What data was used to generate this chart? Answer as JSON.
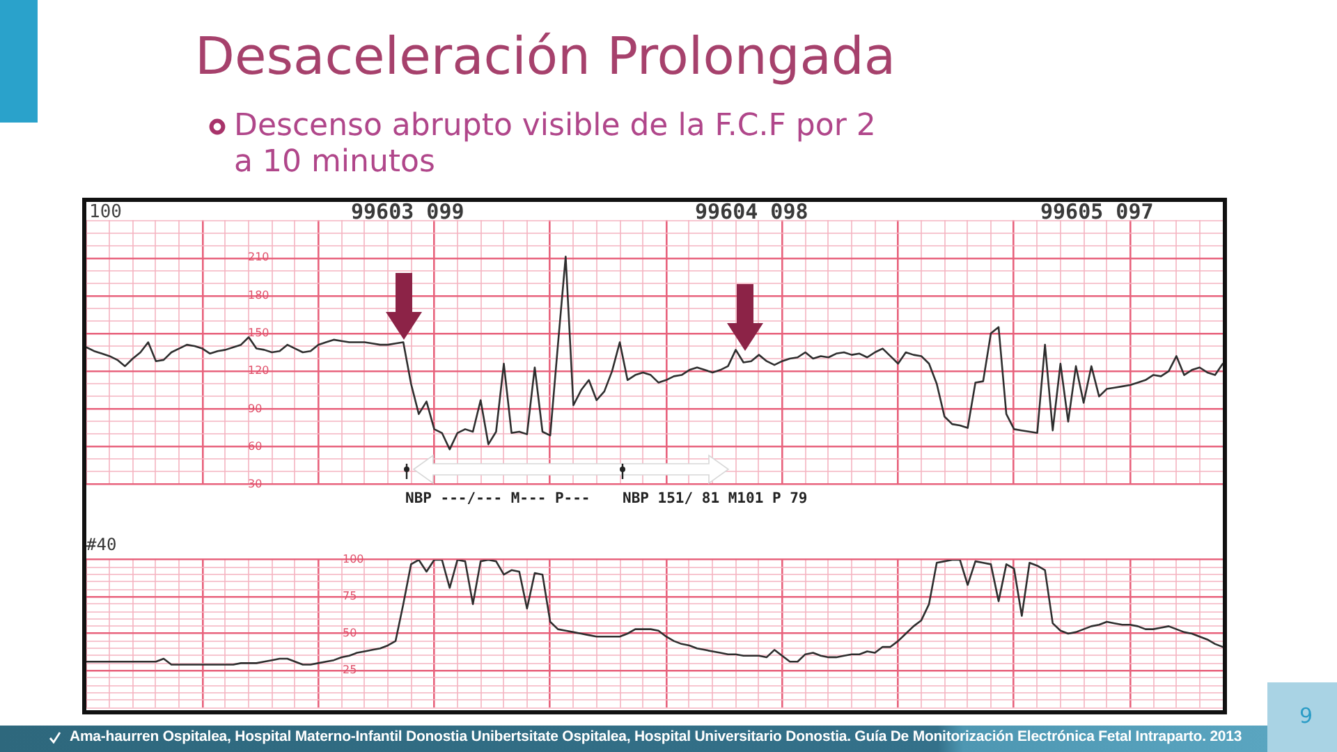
{
  "chart_data": [
    {
      "type": "line",
      "title": "Desaceleración Prolongada",
      "subtitle": "Descenso abrupto visible de la F.C.F por 2 a 10 minutos",
      "annotations": [
        "100",
        "99603 099",
        "99604 098",
        "99605 097",
        "NBP ---/--- M--- P---",
        "NBP 151/ 81 M101 P 79",
        "Ama-haurren Ospitalea, Hospital Materno-Infantil Donostia Unibertsitate Ospitalea, Hospital Universitario Donostia. Guía De Monitorización Electrónica Fetal Intraparto. 2013",
        "9"
      ],
      "categories": [
        null,
        null,
        null,
        null,
        null,
        null,
        null,
        null,
        null,
        null,
        null,
        null,
        null,
        null,
        null,
        null,
        null,
        null,
        null,
        null,
        null,
        null,
        null,
        null,
        null,
        null,
        null,
        null,
        null,
        null,
        null,
        null,
        null,
        null,
        null,
        null,
        null,
        null,
        null,
        null,
        null,
        null,
        null,
        null,
        null,
        null,
        null,
        null,
        null,
        null,
        null,
        null,
        null,
        null,
        null,
        null,
        null,
        null,
        null,
        null,
        null,
        null,
        null,
        null,
        null,
        null,
        null,
        null,
        null,
        null,
        null,
        null,
        null,
        null,
        null,
        null,
        null,
        null,
        null,
        null,
        null,
        null,
        null,
        null,
        null,
        null,
        null,
        null,
        null,
        null,
        null,
        null,
        null,
        null,
        null,
        null,
        null,
        null,
        null,
        null,
        null,
        null,
        null,
        null,
        null,
        null,
        null,
        null,
        null,
        null,
        null,
        null,
        null,
        null,
        null,
        null,
        null,
        null,
        null,
        null,
        null,
        null,
        null,
        null,
        null,
        null,
        null,
        null,
        null,
        null,
        null,
        null,
        null,
        null,
        null,
        null,
        null,
        null,
        null,
        null,
        null,
        null,
        null,
        null,
        null,
        null,
        null,
        null
      ],
      "series": [
        {
          "color": "#2e2e2e",
          "values": [
            139,
            136,
            134,
            132,
            129,
            124,
            130,
            135,
            143,
            128,
            129,
            135,
            138,
            141,
            140,
            138,
            134,
            136,
            137,
            139,
            141,
            147,
            138,
            137,
            135,
            136,
            141,
            138,
            135,
            136,
            141,
            143,
            145,
            144,
            143,
            143,
            143,
            142,
            141,
            141,
            142,
            143,
            110,
            86,
            96,
            74,
            71,
            58,
            71,
            74,
            72,
            97,
            62,
            72,
            126,
            71,
            72,
            70,
            123,
            72,
            69,
            141,
            211,
            93,
            105,
            113,
            97,
            104,
            120,
            143,
            113,
            117,
            119,
            117,
            111,
            113,
            116,
            117,
            121,
            123,
            121,
            119,
            121,
            124,
            137,
            127,
            128,
            133,
            128,
            125,
            128,
            130,
            131,
            135,
            130,
            132,
            131,
            134,
            135,
            133,
            134,
            131,
            135,
            138,
            132,
            126,
            135,
            133,
            132,
            126,
            110,
            84,
            78,
            77,
            75,
            111,
            112,
            150,
            155,
            86,
            74,
            73,
            72,
            71,
            141,
            73,
            126,
            80,
            124,
            95,
            124,
            100,
            106,
            107,
            108,
            109,
            111,
            113,
            117,
            116,
            120,
            132,
            117,
            121,
            123,
            119,
            117,
            126
          ]
        }
      ],
      "ylim": [
        30,
        240
      ],
      "yticks": [
        30,
        {
          "value": 40,
          "label": null
        },
        {
          "value": 50,
          "label": null
        },
        60,
        {
          "value": 70,
          "label": null
        },
        {
          "value": 80,
          "label": null
        },
        90,
        {
          "value": 100,
          "label": null
        },
        {
          "value": 110,
          "label": null
        },
        120,
        {
          "value": 130,
          "label": null
        },
        {
          "value": 140,
          "label": null
        },
        150,
        {
          "value": 160,
          "label": null
        },
        {
          "value": 170,
          "label": null
        },
        180,
        {
          "value": 190,
          "label": null
        },
        {
          "value": 200,
          "label": null
        },
        210,
        {
          "value": 220,
          "label": null
        },
        {
          "value": 230,
          "label": null
        },
        {
          "value": 240,
          "label": null
        }
      ],
      "grid": true,
      "tick_labels": "y"
    },
    {
      "type": "line",
      "annotations": [
        "#40"
      ],
      "categories": [
        null,
        null,
        null,
        null,
        null,
        null,
        null,
        null,
        null,
        null,
        null,
        null,
        null,
        null,
        null,
        null,
        null,
        null,
        null,
        null,
        null,
        null,
        null,
        null,
        null,
        null,
        null,
        null,
        null,
        null,
        null,
        null,
        null,
        null,
        null,
        null,
        null,
        null,
        null,
        null,
        null,
        null,
        null,
        null,
        null,
        null,
        null,
        null,
        null,
        null,
        null,
        null,
        null,
        null,
        null,
        null,
        null,
        null,
        null,
        null,
        null,
        null,
        null,
        null,
        null,
        null,
        null,
        null,
        null,
        null,
        null,
        null,
        null,
        null,
        null,
        null,
        null,
        null,
        null,
        null,
        null,
        null,
        null,
        null,
        null,
        null,
        null,
        null,
        null,
        null,
        null,
        null,
        null,
        null,
        null,
        null,
        null,
        null,
        null,
        null,
        null,
        null,
        null,
        null,
        null,
        null,
        null,
        null,
        null,
        null,
        null,
        null,
        null,
        null,
        null,
        null,
        null,
        null,
        null,
        null,
        null,
        null,
        null,
        null,
        null,
        null,
        null,
        null,
        null,
        null,
        null,
        null,
        null,
        null,
        null,
        null,
        null,
        null,
        null,
        null,
        null,
        null,
        null,
        null,
        null,
        null,
        null,
        null
      ],
      "series": [
        {
          "color": "#2e2e2e",
          "values": [
            31,
            31,
            31,
            31,
            31,
            31,
            31,
            31,
            31,
            31,
            33,
            29,
            29,
            29,
            29,
            29,
            29,
            29,
            29,
            29,
            30,
            30,
            30,
            31,
            32,
            33,
            33,
            31,
            29,
            29,
            30,
            31,
            32,
            34,
            35,
            37,
            38,
            39,
            40,
            42,
            45,
            70,
            97,
            100,
            92,
            100,
            100,
            81,
            100,
            99,
            70,
            99,
            100,
            99,
            90,
            93,
            92,
            67,
            91,
            90,
            58,
            53,
            52,
            51,
            50,
            49,
            48,
            48,
            48,
            48,
            50,
            53,
            53,
            53,
            52,
            48,
            45,
            43,
            42,
            40,
            39,
            38,
            37,
            36,
            36,
            35,
            35,
            35,
            34,
            39,
            35,
            31,
            31,
            36,
            37,
            35,
            34,
            34,
            35,
            36,
            36,
            38,
            37,
            41,
            41,
            45,
            50,
            55,
            59,
            70,
            98,
            99,
            100,
            100,
            83,
            99,
            98,
            97,
            72,
            97,
            94,
            62,
            98,
            96,
            93,
            57,
            52,
            50,
            51,
            53,
            55,
            56,
            58,
            57,
            56,
            56,
            55,
            53,
            53,
            54,
            55,
            53,
            51,
            50,
            48,
            46,
            43,
            41
          ]
        }
      ],
      "ylim": [
        0,
        100
      ],
      "yticks": [
        {
          "value": 0,
          "label": null
        },
        {
          "value": 5,
          "label": null
        },
        {
          "value": 10,
          "label": null
        },
        {
          "value": 15,
          "label": null
        },
        {
          "value": 20,
          "label": null
        },
        25,
        {
          "value": 30,
          "label": null
        },
        {
          "value": 35,
          "label": null
        },
        {
          "value": 40,
          "label": null
        },
        {
          "value": 45,
          "label": null
        },
        50,
        {
          "value": 55,
          "label": null
        },
        {
          "value": 60,
          "label": null
        },
        {
          "value": 65,
          "label": null
        },
        {
          "value": 70,
          "label": null
        },
        75,
        {
          "value": 80,
          "label": null
        },
        {
          "value": 85,
          "label": null
        },
        {
          "value": 90,
          "label": null
        },
        {
          "value": 95,
          "label": null
        },
        100
      ],
      "grid": true,
      "tick_labels": "y"
    }
  ]
}
